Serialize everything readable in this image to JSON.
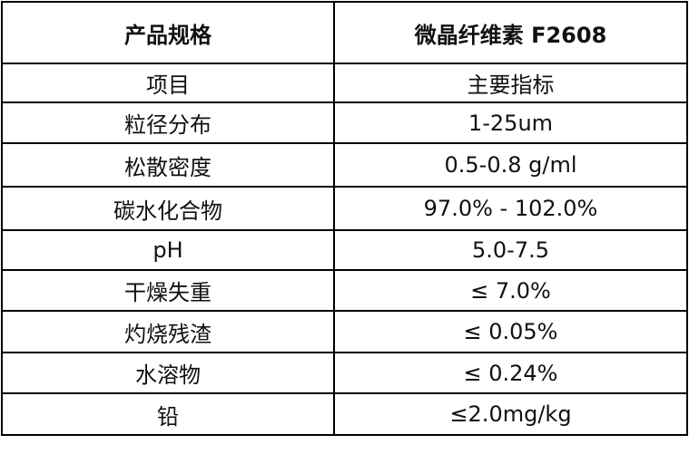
{
  "table": {
    "header": [
      "产品规格",
      "微晶纤维素 F2608"
    ],
    "rows": [
      [
        "项目",
        "主要指标"
      ],
      [
        "粒径分布",
        "1-25um"
      ],
      [
        "松散密度",
        "0.5-0.8 g/ml"
      ],
      [
        "碳水化合物",
        "97.0% - 102.0%"
      ],
      [
        "pH",
        "5.0-7.5"
      ],
      [
        "干燥失重",
        "≤ 7.0%"
      ],
      [
        "灼烧残渣",
        "≤ 0.05%"
      ],
      [
        "水溶物",
        "≤ 0.24%"
      ],
      [
        "铅",
        "≤2.0mg/kg"
      ]
    ]
  }
}
